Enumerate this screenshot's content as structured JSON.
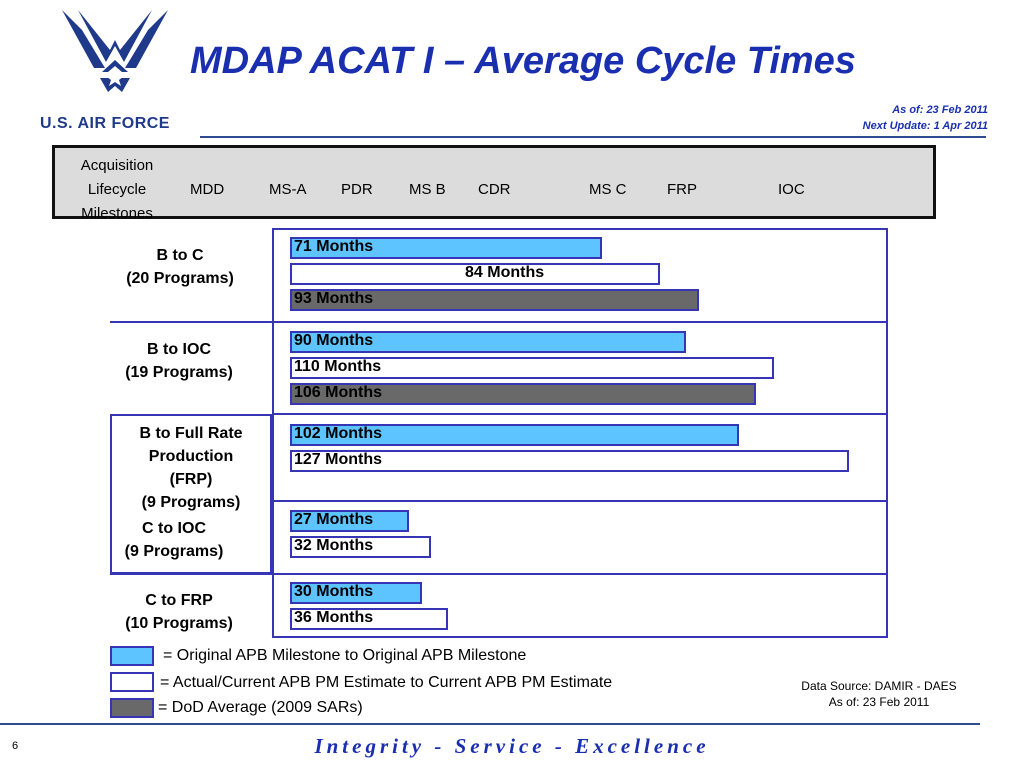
{
  "header": {
    "title": "MDAP ACAT I – Average Cycle Times",
    "brand": "U.S. AIR FORCE",
    "as_of": "As of: 23 Feb 2011",
    "next_update": "Next Update: 1 Apr 2011"
  },
  "milestones": {
    "heading": [
      "Acquisition",
      "Lifecycle",
      "Milestones"
    ],
    "items": [
      "MDD",
      "MS-A",
      "PDR",
      "MS B",
      "CDR",
      "MS C",
      "FRP",
      "IOC"
    ]
  },
  "chart_data": {
    "type": "bar",
    "orientation": "horizontal",
    "unit": "Months",
    "groups": [
      {
        "label": [
          "B to C",
          "(20 Programs)"
        ],
        "bars": [
          {
            "series": "original",
            "value": 71,
            "label": "71 Months"
          },
          {
            "series": "actual",
            "value": 84,
            "label": "84 Months"
          },
          {
            "series": "dod",
            "value": 93,
            "label": "93 Months"
          }
        ]
      },
      {
        "label": [
          "B to IOC",
          "(19 Programs)"
        ],
        "bars": [
          {
            "series": "original",
            "value": 90,
            "label": "90 Months"
          },
          {
            "series": "actual",
            "value": 110,
            "label": "110 Months"
          },
          {
            "series": "dod",
            "value": 106,
            "label": "106 Months"
          }
        ]
      },
      {
        "label": [
          "B to Full Rate",
          "Production",
          "(FRP)",
          "(9 Programs)"
        ],
        "bars": [
          {
            "series": "original",
            "value": 102,
            "label": "102 Months"
          },
          {
            "series": "actual",
            "value": 127,
            "label": "127 Months"
          }
        ]
      },
      {
        "label": [
          "C to IOC",
          "(9 Programs)"
        ],
        "bars": [
          {
            "series": "original",
            "value": 27,
            "label": "27 Months"
          },
          {
            "series": "actual",
            "value": 32,
            "label": "32 Months"
          }
        ]
      },
      {
        "label": [
          "C to FRP",
          "(10 Programs)"
        ],
        "bars": [
          {
            "series": "original",
            "value": 30,
            "label": "30 Months"
          },
          {
            "series": "actual",
            "value": 36,
            "label": "36 Months"
          }
        ]
      }
    ],
    "legend": [
      {
        "series": "original",
        "text": "= Original APB Milestone to Original APB Milestone"
      },
      {
        "series": "actual",
        "text": "= Actual/Current APB PM Estimate to Current APB PM Estimate"
      },
      {
        "series": "dod",
        "text": "= DoD Average (2009 SARs)"
      }
    ],
    "colors": {
      "original": "#5ec4ff",
      "actual": "#ffffff",
      "dod": "#696969",
      "border": "#3535b5"
    }
  },
  "footer": {
    "source": [
      "Data Source: DAMIR - DAES",
      "As of: 23 Feb 2011"
    ],
    "page_number": "6",
    "motto": "Integrity - Service - Excellence"
  }
}
